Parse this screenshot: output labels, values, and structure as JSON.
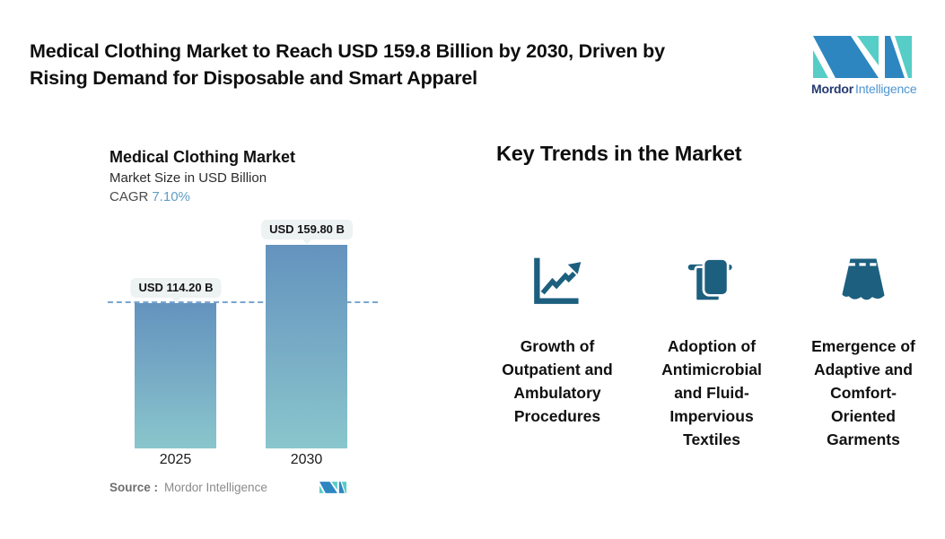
{
  "header": {
    "title": "Medical Clothing Market to Reach USD 159.8 Billion by 2030, Driven by\nRising Demand for Disposable and Smart Apparel",
    "brand_bold": "Mordor",
    "brand_light": "Intelligence"
  },
  "chart": {
    "title": "Medical Clothing Market",
    "subtitle": "Market Size in USD Billion",
    "cagr_label": "CAGR",
    "cagr_value": "7.10%",
    "source_label": "Source :",
    "source_value": "Mordor Intelligence"
  },
  "chart_data": {
    "type": "bar",
    "title": "Medical Clothing Market",
    "ylabel": "Market Size in USD Billion",
    "unit": "USD Billion",
    "categories": [
      "2025",
      "2030"
    ],
    "values": [
      114.2,
      159.8
    ],
    "data_labels": [
      "USD 114.20 B",
      "USD 159.80 B"
    ],
    "cagr": "7.10%",
    "reference_line": 114.2,
    "grid": "off",
    "legend": "none",
    "bar_gradient": [
      "#6493be",
      "#8ac6cc"
    ]
  },
  "trends": {
    "heading": "Key Trends in the Market",
    "items": [
      {
        "icon": "chart-increasing-icon",
        "label": "Growth of\nOutpatient and\nAmbulatory\nProcedures"
      },
      {
        "icon": "towel-icon",
        "label": "Adoption of\nAntimicrobial\nand Fluid-\nImpervious\nTextiles"
      },
      {
        "icon": "skirt-icon",
        "label": "Emergence of\nAdaptive and\nComfort-\nOriented\nGarments"
      }
    ]
  },
  "colors": {
    "icon_teal_blue": "#1d5f7f",
    "logo_blue": "#2e86c1",
    "logo_teal": "#56cdc6",
    "cagr_blue": "#5f9ec7",
    "dash_line": "#79a6d0",
    "pill_bg": "#edf2f2"
  }
}
